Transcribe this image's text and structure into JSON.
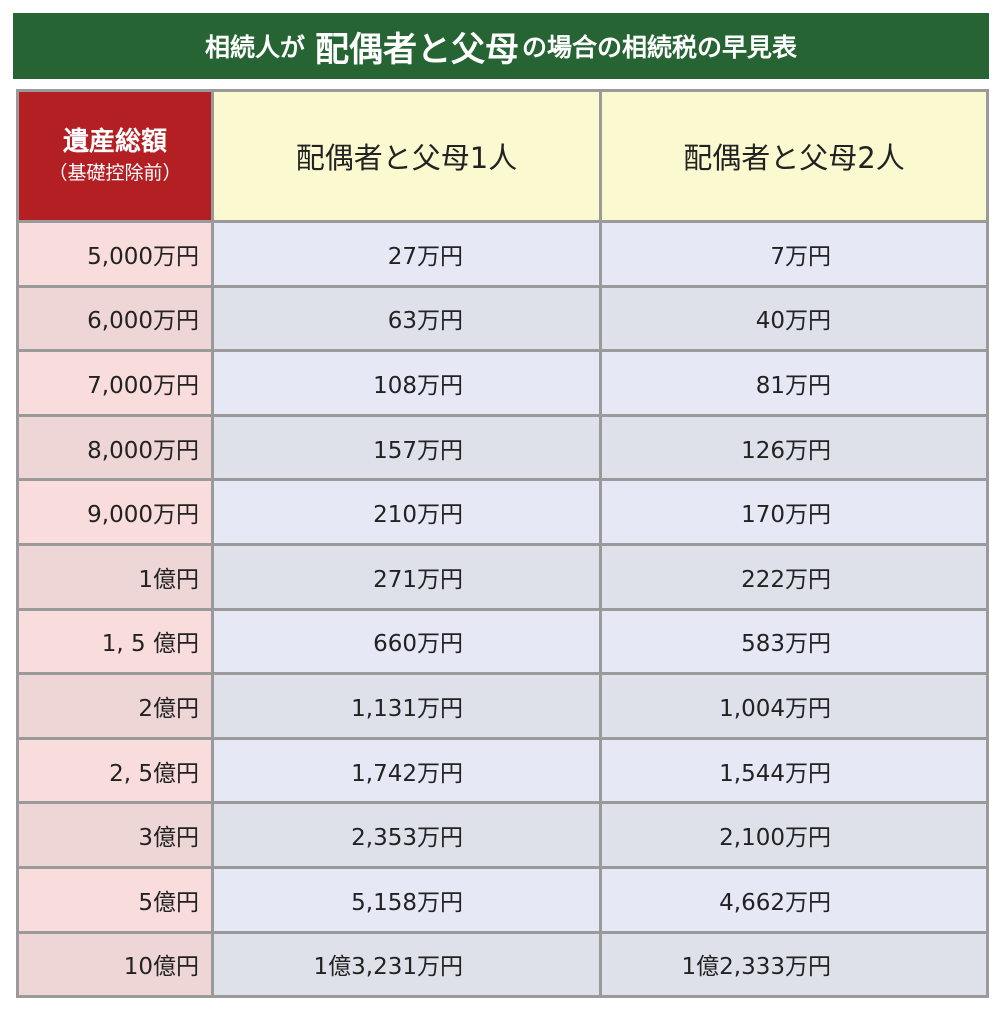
{
  "title": {
    "prefix": "相続人が",
    "emphasis": "配偶者と父母",
    "suffix": "の場合の相続税の早見表"
  },
  "table": {
    "corner_main": "遺産総額",
    "corner_sub": "（基礎控除前）",
    "columns": [
      "配偶者と父母1人",
      "配偶者と父母2人"
    ],
    "rows": [
      {
        "estate": "5,000万円",
        "one_parent": "27万円",
        "two_parents": "7万円"
      },
      {
        "estate": "6,000万円",
        "one_parent": "63万円",
        "two_parents": "40万円"
      },
      {
        "estate": "7,000万円",
        "one_parent": "108万円",
        "two_parents": "81万円"
      },
      {
        "estate": "8,000万円",
        "one_parent": "157万円",
        "two_parents": "126万円"
      },
      {
        "estate": "9,000万円",
        "one_parent": "210万円",
        "two_parents": "170万円"
      },
      {
        "estate": "1億円",
        "one_parent": "271万円",
        "two_parents": "222万円"
      },
      {
        "estate": "1, 5 億円",
        "one_parent": "660万円",
        "two_parents": "583万円"
      },
      {
        "estate": "2億円",
        "one_parent": "1,131万円",
        "two_parents": "1,004万円"
      },
      {
        "estate": "2, 5億円",
        "one_parent": "1,742万円",
        "two_parents": "1,544万円"
      },
      {
        "estate": "3億円",
        "one_parent": "2,353万円",
        "two_parents": "2,100万円"
      },
      {
        "estate": "5億円",
        "one_parent": "5,158万円",
        "two_parents": "4,662万円"
      },
      {
        "estate": "10億円",
        "one_parent": "1億3,231万円",
        "two_parents": "1億2,333万円"
      }
    ]
  },
  "colors": {
    "title_bg": "#276434",
    "corner_bg": "#b41f24",
    "header_bg": "#fbf9d0",
    "estate_bg": "#f9dcdc",
    "value_bg": "#e6e9f5",
    "border": "#9a9a9a"
  }
}
